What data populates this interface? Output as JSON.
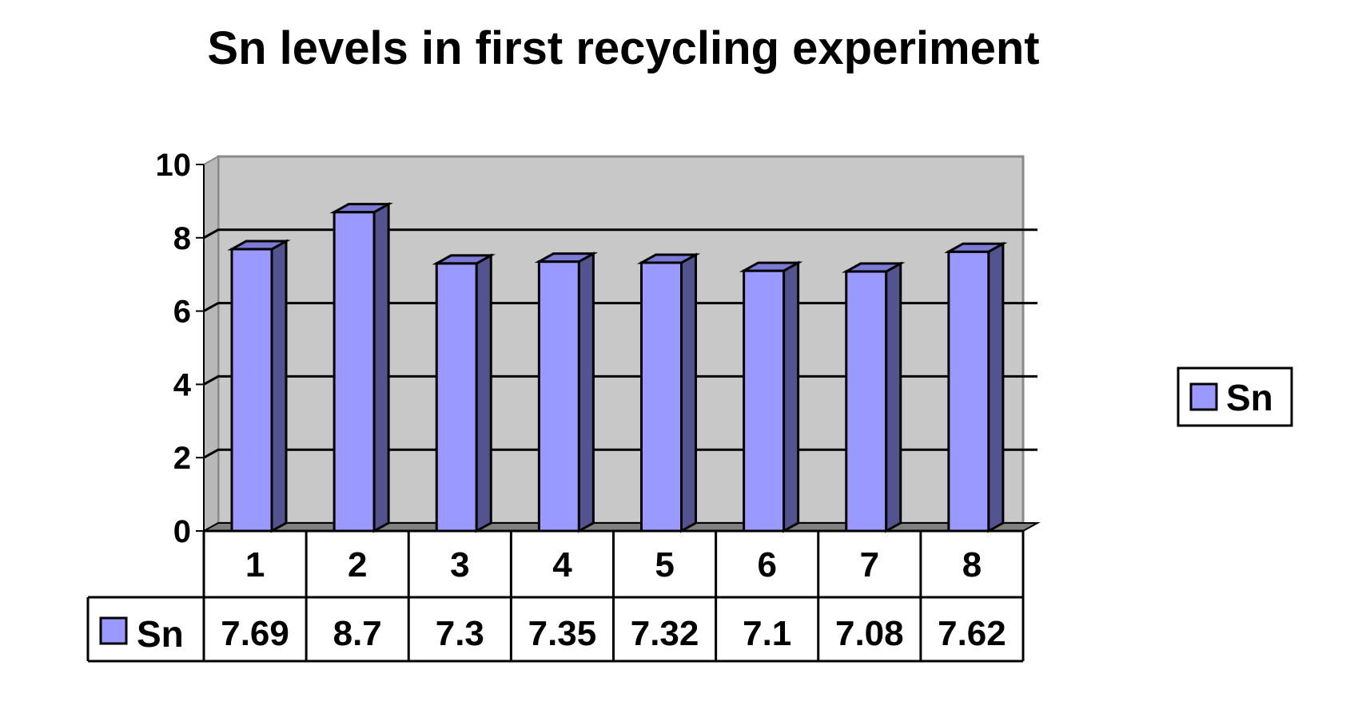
{
  "chart_data": {
    "type": "bar",
    "title": "Sn levels in first recycling experiment",
    "categories": [
      "1",
      "2",
      "3",
      "4",
      "5",
      "6",
      "7",
      "8"
    ],
    "series": [
      {
        "name": "Sn",
        "values": [
          7.69,
          8.7,
          7.3,
          7.35,
          7.32,
          7.1,
          7.08,
          7.62
        ]
      }
    ],
    "data_table_values": [
      "7.69",
      "8.7",
      "7.3",
      "7.35",
      "7.32",
      "7.1",
      "7.08",
      "7.62"
    ],
    "yticks": [
      "0",
      "2",
      "4",
      "6",
      "8",
      "10"
    ],
    "ylim": [
      0,
      10
    ],
    "grid": true,
    "legend": "right",
    "style": "3d-column",
    "colors": {
      "bar_front": "#9999ff",
      "bar_side": "#53538f",
      "bar_top": "#7b7bd6",
      "plot_wall": "#c8c8c8",
      "plot_floor": "#808080"
    }
  }
}
